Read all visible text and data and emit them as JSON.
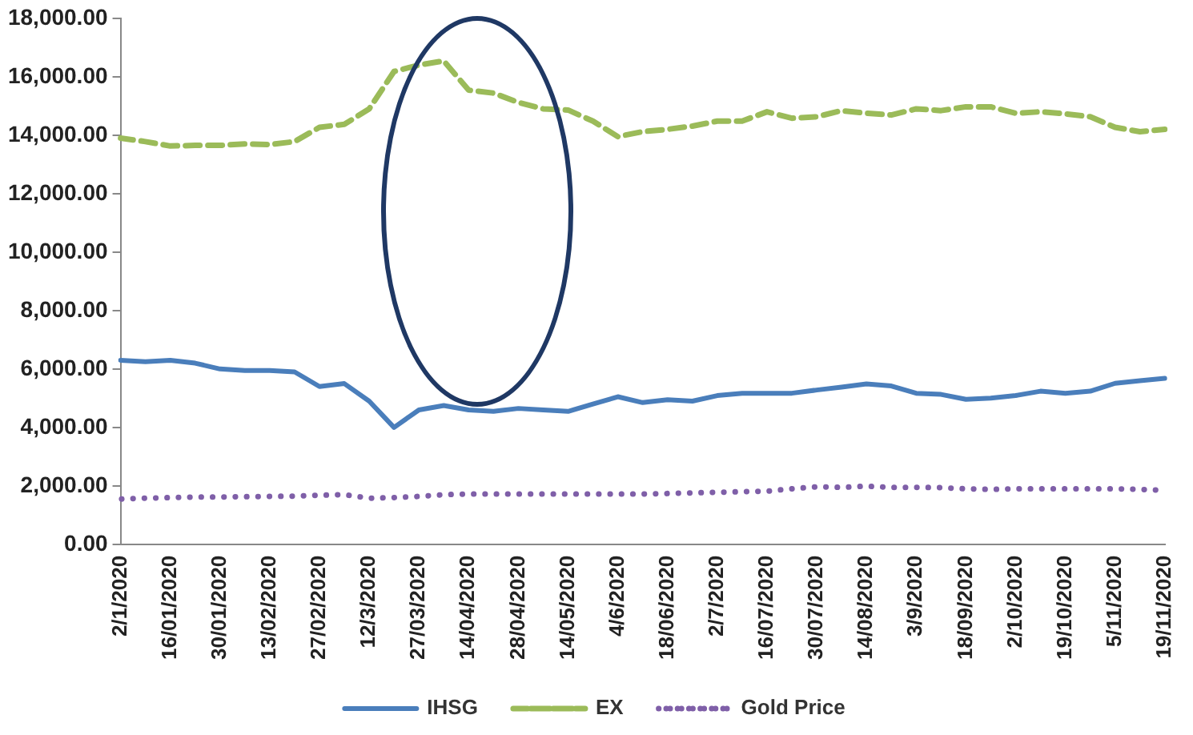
{
  "chart_data": {
    "type": "line",
    "categories": [
      "2/1/2020",
      null,
      "16/01/2020",
      null,
      "30/01/2020",
      null,
      "13/02/2020",
      null,
      "27/02/2020",
      null,
      "12/3/2020",
      null,
      "27/03/2020",
      null,
      "14/04/2020",
      null,
      "28/04/2020",
      null,
      "14/05/2020",
      null,
      "4/6/2020",
      null,
      "18/06/2020",
      null,
      "2/7/2020",
      null,
      "16/07/2020",
      null,
      "30/07/2020",
      null,
      "14/08/2020",
      null,
      "3/9/2020",
      null,
      "18/09/2020",
      null,
      "2/10/2020",
      null,
      "19/10/2020",
      null,
      "5/11/2020",
      null,
      "19/11/2020"
    ],
    "series": [
      {
        "name": "IHSG",
        "color": "#4a7ebb",
        "line_style": "solid",
        "values": [
          6300,
          6250,
          6300,
          6200,
          6000,
          5950,
          5950,
          5900,
          5400,
          5500,
          4900,
          4000,
          4600,
          4750,
          4600,
          4550,
          4650,
          4600,
          4550,
          4800,
          5050,
          4850,
          4950,
          4900,
          5090,
          5170,
          5170,
          5170,
          5280,
          5380,
          5490,
          5420,
          5170,
          5130,
          4960,
          5000,
          5090,
          5240,
          5170,
          5240,
          5510,
          5600,
          5680
        ]
      },
      {
        "name": "EX",
        "color": "#9bbb59",
        "line_style": "dashed",
        "values": [
          13900,
          13780,
          13630,
          13650,
          13650,
          13700,
          13680,
          13780,
          14270,
          14370,
          14900,
          16180,
          16400,
          16540,
          15540,
          15440,
          15120,
          14900,
          14860,
          14480,
          13950,
          14120,
          14200,
          14310,
          14480,
          14480,
          14800,
          14580,
          14630,
          14840,
          14750,
          14690,
          14900,
          14840,
          14970,
          14970,
          14750,
          14800,
          14730,
          14630,
          14270,
          14120,
          14200
        ]
      },
      {
        "name": "Gold Price",
        "color": "#7f5fa8",
        "line_style": "dotted",
        "values": [
          1550,
          1580,
          1600,
          1620,
          1620,
          1630,
          1640,
          1650,
          1680,
          1700,
          1580,
          1600,
          1640,
          1700,
          1720,
          1720,
          1720,
          1720,
          1720,
          1720,
          1720,
          1720,
          1740,
          1760,
          1780,
          1800,
          1820,
          1900,
          1970,
          1950,
          1990,
          1950,
          1950,
          1940,
          1900,
          1880,
          1900,
          1900,
          1900,
          1900,
          1900,
          1880,
          1850
        ]
      }
    ],
    "ylim": [
      0,
      18000
    ],
    "yticks": [
      {
        "value": 0,
        "label": "0.00"
      },
      {
        "value": 2000,
        "label": "2,000.00"
      },
      {
        "value": 4000,
        "label": "4,000.00"
      },
      {
        "value": 6000,
        "label": "6,000.00"
      },
      {
        "value": 8000,
        "label": "8,000.00"
      },
      {
        "value": 10000,
        "label": "10,000.00"
      },
      {
        "value": 12000,
        "label": "12,000.00"
      },
      {
        "value": 14000,
        "label": "14,000.00"
      },
      {
        "value": 16000,
        "label": "16,000.00"
      },
      {
        "value": 18000,
        "label": "18,000.00"
      }
    ],
    "grid": false,
    "legend": "bottom",
    "marker": "none"
  }
}
